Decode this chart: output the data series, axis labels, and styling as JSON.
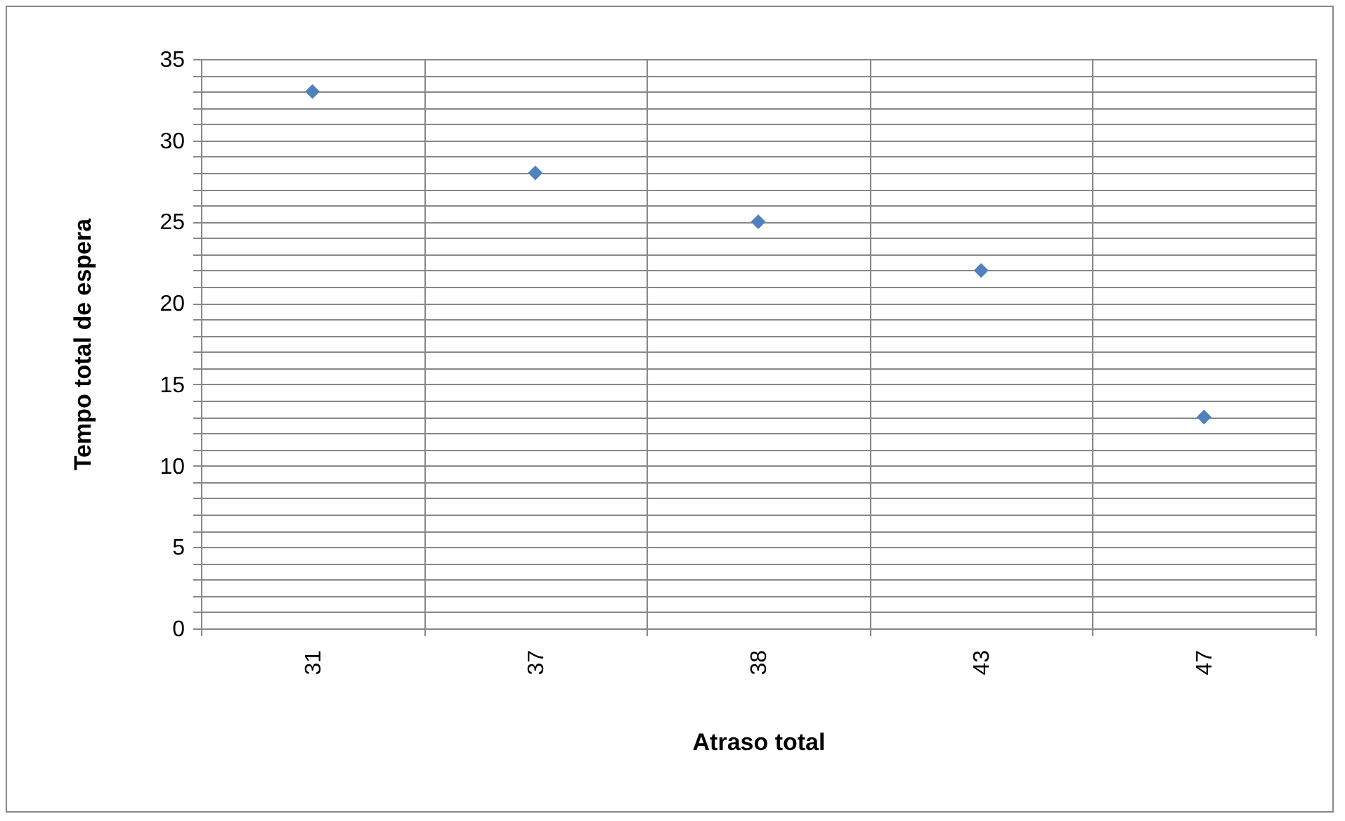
{
  "chart_data": {
    "type": "scatter",
    "xlabel": "Atraso total",
    "ylabel": "Tempo total de espera",
    "categories": [
      "31",
      "37",
      "38",
      "43",
      "47"
    ],
    "series": [
      {
        "color": "#4f81bd",
        "values": [
          33,
          28,
          25,
          22,
          13
        ]
      }
    ],
    "marker": "diamond",
    "grid": true,
    "legend": false,
    "ylim": [
      0,
      35
    ],
    "yticks": [
      0,
      {
        "value": 1,
        "label": null
      },
      {
        "value": 2,
        "label": null
      },
      {
        "value": 3,
        "label": null
      },
      {
        "value": 4,
        "label": null
      },
      5,
      {
        "value": 6,
        "label": null
      },
      {
        "value": 7,
        "label": null
      },
      {
        "value": 8,
        "label": null
      },
      {
        "value": 9,
        "label": null
      },
      10,
      {
        "value": 11,
        "label": null
      },
      {
        "value": 12,
        "label": null
      },
      {
        "value": 13,
        "label": null
      },
      {
        "value": 14,
        "label": null
      },
      15,
      {
        "value": 16,
        "label": null
      },
      {
        "value": 17,
        "label": null
      },
      {
        "value": 18,
        "label": null
      },
      {
        "value": 19,
        "label": null
      },
      20,
      {
        "value": 21,
        "label": null
      },
      {
        "value": 22,
        "label": null
      },
      {
        "value": 23,
        "label": null
      },
      {
        "value": 24,
        "label": null
      },
      25,
      {
        "value": 26,
        "label": null
      },
      {
        "value": 27,
        "label": null
      },
      {
        "value": 28,
        "label": null
      },
      {
        "value": 29,
        "label": null
      },
      30,
      {
        "value": 31,
        "label": null
      },
      {
        "value": 32,
        "label": null
      },
      {
        "value": 33,
        "label": null
      },
      {
        "value": 34,
        "label": null
      },
      35
    ]
  }
}
